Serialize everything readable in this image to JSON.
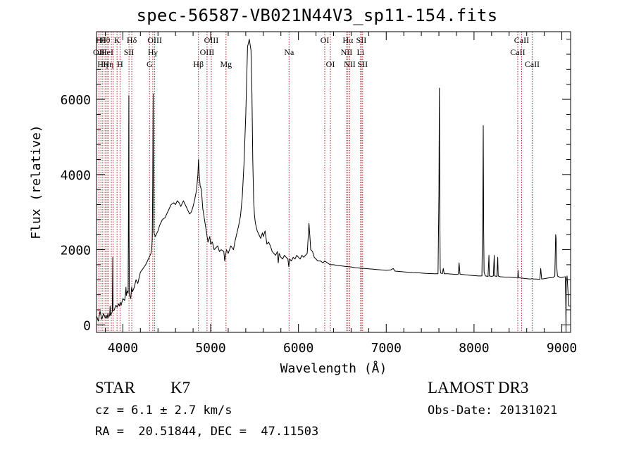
{
  "chart_data": {
    "type": "line",
    "title": "spec-56587-VB021N44V3_sp11-154.fits",
    "xlabel": "Wavelength (Å)",
    "ylabel": "Flux (relative)",
    "xlim": [
      3700,
      9100
    ],
    "ylim": [
      -200,
      7800
    ],
    "xticks": [
      4000,
      5000,
      6000,
      7000,
      8000,
      9000
    ],
    "yticks": [
      0,
      2000,
      4000,
      6000
    ],
    "x_minor_step": 200,
    "y_minor_step": 400,
    "line_color": "#000000",
    "series": [
      {
        "points": [
          [
            3700,
            240
          ],
          [
            3720,
            100
          ],
          [
            3740,
            360
          ],
          [
            3760,
            150
          ],
          [
            3780,
            300
          ],
          [
            3800,
            180
          ],
          [
            3810,
            250
          ],
          [
            3820,
            170
          ],
          [
            3830,
            300
          ],
          [
            3840,
            200
          ],
          [
            3850,
            260
          ],
          [
            3855,
            500
          ],
          [
            3860,
            250
          ],
          [
            3870,
            300
          ],
          [
            3880,
            350
          ],
          [
            3885,
            1800
          ],
          [
            3888,
            400
          ],
          [
            3900,
            380
          ],
          [
            3920,
            520
          ],
          [
            3935,
            470
          ],
          [
            3950,
            560
          ],
          [
            3960,
            500
          ],
          [
            3970,
            600
          ],
          [
            3980,
            520
          ],
          [
            4000,
            700
          ],
          [
            4020,
            650
          ],
          [
            4030,
            800
          ],
          [
            4035,
            1000
          ],
          [
            4040,
            780
          ],
          [
            4050,
            900
          ],
          [
            4060,
            850
          ],
          [
            4065,
            3500
          ],
          [
            4068,
            6100
          ],
          [
            4071,
            2500
          ],
          [
            4075,
            800
          ],
          [
            4090,
            700
          ],
          [
            4100,
            1000
          ],
          [
            4110,
            880
          ],
          [
            4130,
            1000
          ],
          [
            4150,
            1200
          ],
          [
            4170,
            1100
          ],
          [
            4200,
            1400
          ],
          [
            4230,
            1500
          ],
          [
            4260,
            1600
          ],
          [
            4280,
            1700
          ],
          [
            4300,
            1800
          ],
          [
            4320,
            1900
          ],
          [
            4330,
            2050
          ],
          [
            4335,
            2300
          ],
          [
            4340,
            3700
          ],
          [
            4345,
            6150
          ],
          [
            4350,
            3800
          ],
          [
            4355,
            2450
          ],
          [
            4370,
            2350
          ],
          [
            4400,
            2500
          ],
          [
            4420,
            2650
          ],
          [
            4450,
            2800
          ],
          [
            4480,
            2850
          ],
          [
            4500,
            2950
          ],
          [
            4520,
            3050
          ],
          [
            4550,
            3200
          ],
          [
            4580,
            3250
          ],
          [
            4600,
            3200
          ],
          [
            4620,
            3300
          ],
          [
            4640,
            3250
          ],
          [
            4660,
            3150
          ],
          [
            4690,
            3300
          ],
          [
            4700,
            3250
          ],
          [
            4730,
            3100
          ],
          [
            4760,
            2950
          ],
          [
            4780,
            3000
          ],
          [
            4800,
            3150
          ],
          [
            4820,
            3350
          ],
          [
            4840,
            3600
          ],
          [
            4855,
            4000
          ],
          [
            4862,
            4400
          ],
          [
            4870,
            4000
          ],
          [
            4880,
            3700
          ],
          [
            4895,
            3600
          ],
          [
            4910,
            3100
          ],
          [
            4930,
            2800
          ],
          [
            4950,
            2500
          ],
          [
            4970,
            2200
          ],
          [
            4990,
            2350
          ],
          [
            5000,
            2150
          ],
          [
            5020,
            2200
          ],
          [
            5040,
            2000
          ],
          [
            5060,
            2050
          ],
          [
            5080,
            2100
          ],
          [
            5100,
            1950
          ],
          [
            5120,
            2000
          ],
          [
            5150,
            1950
          ],
          [
            5160,
            1700
          ],
          [
            5170,
            1850
          ],
          [
            5180,
            2000
          ],
          [
            5200,
            1900
          ],
          [
            5230,
            2100
          ],
          [
            5260,
            2000
          ],
          [
            5280,
            2250
          ],
          [
            5300,
            2450
          ],
          [
            5320,
            2650
          ],
          [
            5340,
            2900
          ],
          [
            5360,
            3400
          ],
          [
            5380,
            4300
          ],
          [
            5400,
            5600
          ],
          [
            5420,
            7400
          ],
          [
            5440,
            7600
          ],
          [
            5460,
            7300
          ],
          [
            5470,
            6200
          ],
          [
            5480,
            4400
          ],
          [
            5490,
            3300
          ],
          [
            5500,
            2900
          ],
          [
            5510,
            2700
          ],
          [
            5530,
            2500
          ],
          [
            5550,
            2400
          ],
          [
            5570,
            2300
          ],
          [
            5590,
            2450
          ],
          [
            5600,
            2350
          ],
          [
            5620,
            2500
          ],
          [
            5640,
            2150
          ],
          [
            5660,
            2200
          ],
          [
            5680,
            2100
          ],
          [
            5700,
            1950
          ],
          [
            5720,
            1900
          ],
          [
            5740,
            1850
          ],
          [
            5760,
            1950
          ],
          [
            5770,
            1650
          ],
          [
            5780,
            1900
          ],
          [
            5800,
            1800
          ],
          [
            5820,
            1750
          ],
          [
            5840,
            1850
          ],
          [
            5860,
            1800
          ],
          [
            5880,
            1750
          ],
          [
            5890,
            1550
          ],
          [
            5900,
            1750
          ],
          [
            5920,
            1700
          ],
          [
            5940,
            1800
          ],
          [
            5960,
            1750
          ],
          [
            5980,
            1850
          ],
          [
            6000,
            1800
          ],
          [
            6020,
            1750
          ],
          [
            6040,
            1850
          ],
          [
            6060,
            1800
          ],
          [
            6080,
            1850
          ],
          [
            6100,
            1900
          ],
          [
            6110,
            2300
          ],
          [
            6120,
            2700
          ],
          [
            6130,
            2350
          ],
          [
            6140,
            2000
          ],
          [
            6160,
            1950
          ],
          [
            6180,
            1800
          ],
          [
            6200,
            1750
          ],
          [
            6220,
            1700
          ],
          [
            6250,
            1700
          ],
          [
            6280,
            1650
          ],
          [
            6300,
            1700
          ],
          [
            6330,
            1650
          ],
          [
            6360,
            1600
          ],
          [
            6400,
            1600
          ],
          [
            6440,
            1580
          ],
          [
            6480,
            1570
          ],
          [
            6520,
            1560
          ],
          [
            6560,
            1550
          ],
          [
            6600,
            1540
          ],
          [
            6650,
            1520
          ],
          [
            6700,
            1510
          ],
          [
            6750,
            1500
          ],
          [
            6800,
            1490
          ],
          [
            6850,
            1480
          ],
          [
            6900,
            1470
          ],
          [
            6950,
            1460
          ],
          [
            7000,
            1450
          ],
          [
            7050,
            1460
          ],
          [
            7080,
            1500
          ],
          [
            7100,
            1430
          ],
          [
            7150,
            1420
          ],
          [
            7200,
            1410
          ],
          [
            7250,
            1400
          ],
          [
            7300,
            1390
          ],
          [
            7350,
            1385
          ],
          [
            7400,
            1380
          ],
          [
            7450,
            1370
          ],
          [
            7500,
            1365
          ],
          [
            7550,
            1360
          ],
          [
            7590,
            1360
          ],
          [
            7600,
            3500
          ],
          [
            7605,
            6300
          ],
          [
            7610,
            3200
          ],
          [
            7615,
            1500
          ],
          [
            7620,
            1380
          ],
          [
            7640,
            1360
          ],
          [
            7650,
            1500
          ],
          [
            7660,
            1360
          ],
          [
            7700,
            1360
          ],
          [
            7750,
            1350
          ],
          [
            7800,
            1340
          ],
          [
            7820,
            1350
          ],
          [
            7830,
            1650
          ],
          [
            7840,
            1350
          ],
          [
            7900,
            1330
          ],
          [
            7950,
            1320
          ],
          [
            8000,
            1310
          ],
          [
            8050,
            1300
          ],
          [
            8090,
            1300
          ],
          [
            8100,
            3200
          ],
          [
            8105,
            5300
          ],
          [
            8110,
            2500
          ],
          [
            8115,
            1400
          ],
          [
            8130,
            1300
          ],
          [
            8160,
            1290
          ],
          [
            8170,
            1850
          ],
          [
            8175,
            1300
          ],
          [
            8200,
            1290
          ],
          [
            8220,
            1300
          ],
          [
            8230,
            1850
          ],
          [
            8235,
            1300
          ],
          [
            8260,
            1290
          ],
          [
            8270,
            1800
          ],
          [
            8275,
            1300
          ],
          [
            8300,
            1280
          ],
          [
            8350,
            1270
          ],
          [
            8400,
            1270
          ],
          [
            8450,
            1260
          ],
          [
            8498,
            1260
          ],
          [
            8502,
            1450
          ],
          [
            8506,
            1260
          ],
          [
            8520,
            1250
          ],
          [
            8560,
            1240
          ],
          [
            8600,
            1230
          ],
          [
            8640,
            1220
          ],
          [
            8660,
            1230
          ],
          [
            8680,
            1220
          ],
          [
            8700,
            1220
          ],
          [
            8750,
            1210
          ],
          [
            8760,
            1500
          ],
          [
            8770,
            1220
          ],
          [
            8800,
            1230
          ],
          [
            8850,
            1250
          ],
          [
            8900,
            1260
          ],
          [
            8920,
            1300
          ],
          [
            8930,
            2400
          ],
          [
            8935,
            2300
          ],
          [
            8940,
            1600
          ],
          [
            8950,
            1300
          ],
          [
            8980,
            1260
          ],
          [
            9000,
            1260
          ],
          [
            9020,
            1270
          ],
          [
            9040,
            1280
          ],
          [
            9045,
            650
          ],
          [
            9048,
            -200
          ],
          [
            9050,
            1150
          ],
          [
            9060,
            1300
          ],
          [
            9080,
            500
          ],
          [
            9100,
            500
          ]
        ]
      }
    ],
    "lines": [
      {
        "wavelength": 3727,
        "label": "OII",
        "row": 2
      },
      {
        "wavelength": 3750,
        "label": "Hθ",
        "row": 1
      },
      {
        "wavelength": 3771,
        "label": "Hη",
        "row": 3
      },
      {
        "wavelength": 3798,
        "label": "Hθ",
        "row": 1
      },
      {
        "wavelength": 3820,
        "label": "HeI",
        "row": 2
      },
      {
        "wavelength": 3835,
        "label": "Hη",
        "row": 3
      },
      {
        "wavelength": 3869,
        "label": "",
        "row": 0
      },
      {
        "wavelength": 3889,
        "label": "",
        "row": 0
      },
      {
        "wavelength": 3934,
        "label": "K",
        "row": 1
      },
      {
        "wavelength": 3968,
        "label": "H",
        "row": 3
      },
      {
        "wavelength": 4070,
        "label": "SII",
        "row": 2
      },
      {
        "wavelength": 4102,
        "label": "Hδ",
        "row": 1
      },
      {
        "wavelength": 4304,
        "label": "G",
        "row": 3
      },
      {
        "wavelength": 4341,
        "label": "Hγ",
        "row": 2
      },
      {
        "wavelength": 4363,
        "label": "OIII",
        "row": 1
      },
      {
        "wavelength": 4861,
        "label": "Hβ",
        "row": 3
      },
      {
        "wavelength": 4959,
        "label": "OIII",
        "row": 2
      },
      {
        "wavelength": 5007,
        "label": "OIII",
        "row": 1
      },
      {
        "wavelength": 5175,
        "label": "Mg",
        "row": 3
      },
      {
        "wavelength": 5893,
        "label": "Na",
        "row": 2
      },
      {
        "wavelength": 6300,
        "label": "OI",
        "row": 1
      },
      {
        "wavelength": 6364,
        "label": "OI",
        "row": 3
      },
      {
        "wavelength": 6548,
        "label": "NII",
        "row": 2
      },
      {
        "wavelength": 6563,
        "label": "Hα",
        "row": 1
      },
      {
        "wavelength": 6584,
        "label": "NII",
        "row": 3
      },
      {
        "wavelength": 6708,
        "label": "Li",
        "row": 2
      },
      {
        "wavelength": 6716,
        "label": "SII",
        "row": 1
      },
      {
        "wavelength": 6731,
        "label": "SII",
        "row": 3
      },
      {
        "wavelength": 8498,
        "label": "CaII",
        "row": 2
      },
      {
        "wavelength": 8542,
        "label": "CaII",
        "row": 1
      },
      {
        "wavelength": 8662,
        "label": "CaII",
        "row": 3
      }
    ],
    "line_marker_color": "#aa2222"
  },
  "info": {
    "object_class": "STAR",
    "subclass": "K7",
    "survey": "LAMOST DR3",
    "redshift": "cz = 6.1 ± 2.7 km/s",
    "obs_date": "Obs-Date: 20131021",
    "coords": "RA =  20.51844, DEC =  47.11503"
  }
}
